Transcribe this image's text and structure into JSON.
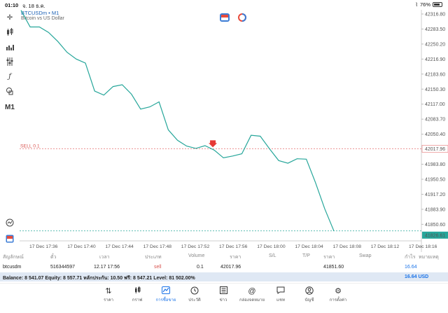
{
  "status": {
    "time": "01:10",
    "date": "จ. 18 ธ.ค.",
    "battery": "76%",
    "battery_level": 0.76
  },
  "chart": {
    "symbol": "BTCUSDm • M1",
    "description": "Bitcoin vs US Dollar",
    "sell_label": "SELL 0.1",
    "sell_price": "42017.96",
    "current_price": "41826.61"
  },
  "chart_data": {
    "type": "line",
    "price_ticks": [
      "42316.80",
      "42283.50",
      "42250.20",
      "42216.90",
      "42183.60",
      "42150.30",
      "42117.00",
      "42083.70",
      "42050.40",
      "42017.96",
      "41983.80",
      "41950.50",
      "41917.20",
      "41883.90",
      "41850.60",
      "41826.61"
    ],
    "time_ticks": [
      "17 Dec 17:36",
      "17 Dec 17:40",
      "17 Dec 17:44",
      "17 Dec 17:48",
      "17 Dec 17:52",
      "17 Dec 17:56",
      "17 Dec 18:00",
      "17 Dec 18:04",
      "17 Dec 18:08",
      "17 Dec 18:12",
      "17 Dec 18:16"
    ],
    "ylim": [
      41817,
      42323
    ],
    "x": [
      0,
      1,
      2,
      3,
      4,
      5,
      6,
      7,
      8,
      9,
      10,
      11,
      12,
      13,
      14,
      15,
      16,
      17,
      18,
      19,
      20,
      21,
      22,
      23,
      24,
      25,
      26,
      27,
      28,
      29,
      30,
      31,
      32,
      33,
      34
    ],
    "values": [
      42325,
      42288,
      42288,
      42276,
      42256,
      42232,
      42217,
      42208,
      42146,
      42137,
      42156,
      42160,
      42139,
      42106,
      42111,
      42122,
      42060,
      42037,
      42024,
      42019,
      42025,
      42015,
      41998,
      42002,
      42007,
      42048,
      42046,
      42018,
      41992,
      41986,
      41996,
      41995,
      41943,
      41885,
      41836
    ],
    "sell_level": 42017.96,
    "grid": false
  },
  "table": {
    "headers": [
      "สัญลักษณ์",
      "ตั๋ว",
      "เวลา",
      "ประเภท",
      "Volume",
      "ราคา",
      "S/L",
      "T/P",
      "ราคา",
      "Swap",
      "กำไร",
      "หมายเหตุ"
    ],
    "row": {
      "symbol": "btcusdm",
      "ticket": "516344597",
      "time": "12.17 17:56",
      "type": "sell",
      "volume": "0.1",
      "open_price": "42017.96",
      "sl": "",
      "tp": "",
      "price": "41851.60",
      "swap": "",
      "profit": "16.64",
      "comment": ""
    }
  },
  "balance": {
    "text": "Balance: 8 541.07 Equity: 8 557.71 หลักประกัน: 10.50 ฟรี: 8 547.21 Level: 81 502.00%",
    "total": "16.64  USD"
  },
  "nav": [
    {
      "label": "ราคา",
      "icon": "arrows-updown-icon"
    },
    {
      "label": "กราฟ",
      "icon": "candles-icon"
    },
    {
      "label": "การซื้อขาย",
      "icon": "trade-chart-icon"
    },
    {
      "label": "ประวัติ",
      "icon": "history-clock-icon"
    },
    {
      "label": "ข่าว",
      "icon": "news-icon"
    },
    {
      "label": "กล่องจดหมาย",
      "icon": "mailbox-icon"
    },
    {
      "label": "แชท",
      "icon": "chat-icon"
    },
    {
      "label": "บัญชี",
      "icon": "account-icon"
    },
    {
      "label": "การตั้งค่า",
      "icon": "settings-gear-icon"
    }
  ]
}
